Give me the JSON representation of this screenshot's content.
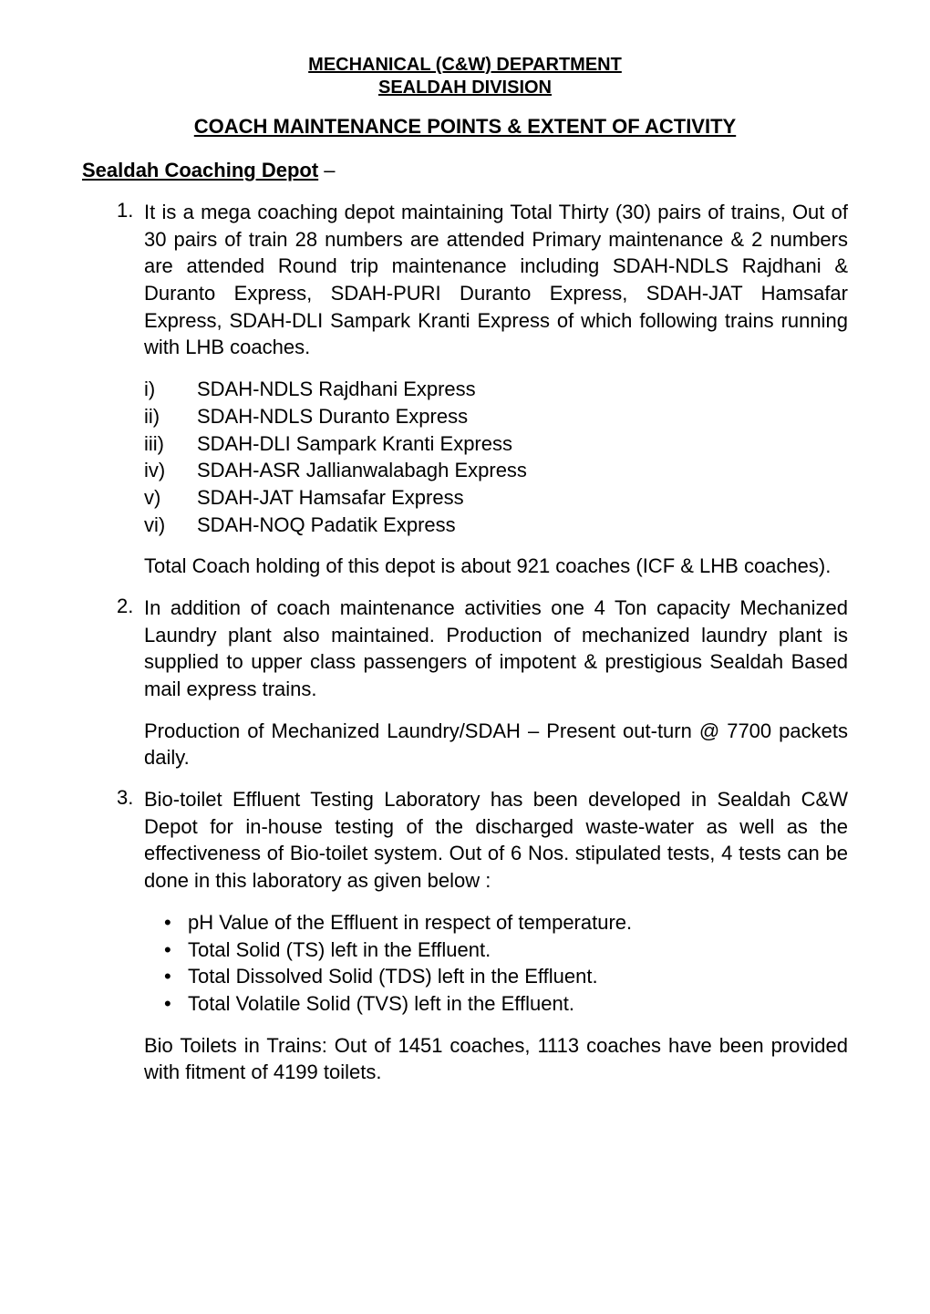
{
  "header": {
    "title": "MECHANICAL  (C&W)  DEPARTMENT",
    "subtitle": "SEALDAH DIVISION"
  },
  "sectionTitle": "COACH MAINTENANCE POINTS & EXTENT OF ACTIVITY",
  "depot": {
    "heading": "Sealdah Coaching Depot",
    "dash": " –"
  },
  "items": [
    {
      "number": "1.",
      "text": "It is a mega coaching depot maintaining Total Thirty (30) pairs of trains, Out of 30 pairs of train 28 numbers are attended Primary maintenance & 2 numbers are attended Round trip maintenance including SDAH-NDLS Rajdhani & Duranto Express, SDAH-PURI Duranto Express, SDAH-JAT Hamsafar Express, SDAH-DLI Sampark Kranti Express of which following trains running with LHB coaches."
    }
  ],
  "romanList": [
    {
      "label": "i)",
      "text": "SDAH-NDLS Rajdhani Express"
    },
    {
      "label": "ii)",
      "text": "SDAH-NDLS Duranto Express"
    },
    {
      "label": "iii)",
      "text": "SDAH-DLI Sampark Kranti Express"
    },
    {
      "label": "iv)",
      "text": "SDAH-ASR Jallianwalabagh Express"
    },
    {
      "label": "v)",
      "text": "SDAH-JAT Hamsafar Express"
    },
    {
      "label": "vi)",
      "text": "SDAH-NOQ Padatik Express"
    }
  ],
  "paragraph1": "Total Coach holding of this depot is about 921 coaches (ICF & LHB coaches).",
  "item2": {
    "number": "2.",
    "text": "In addition of coach maintenance activities one 4 Ton capacity Mechanized Laundry plant also maintained. Production of mechanized laundry plant is supplied to upper class passengers of impotent & prestigious Sealdah Based mail express trains."
  },
  "paragraph2": "Production of Mechanized Laundry/SDAH – Present out-turn @ 7700 packets daily.",
  "item3": {
    "number": "3.",
    "text": "Bio-toilet Effluent Testing Laboratory has been developed in Sealdah C&W Depot for in-house testing of the discharged waste-water as well as the effectiveness of Bio-toilet system. Out of 6 Nos. stipulated tests, 4 tests can be done in this laboratory as given below :"
  },
  "bulletList": [
    "pH Value of the Effluent in respect of temperature.",
    "Total Solid (TS) left in the Effluent.",
    "Total Dissolved Solid (TDS) left in the Effluent.",
    "Total Volatile Solid (TVS) left in the Effluent."
  ],
  "paragraph3": "Bio Toilets in Trains: Out of 1451 coaches, 1113 coaches have been provided with fitment of 4199 toilets.",
  "colors": {
    "background": "#ffffff",
    "text": "#000000"
  },
  "typography": {
    "fontFamily": "Arial, sans-serif",
    "bodyFontSize": 22,
    "headerFontSize": 20,
    "lineHeight": 1.35
  }
}
